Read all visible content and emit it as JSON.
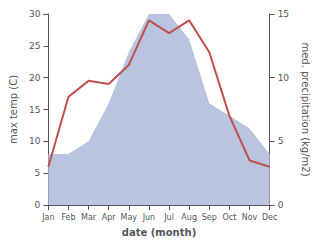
{
  "chart_data": {
    "type": "line",
    "xlabel": "date (month)",
    "ylabel": "max temp (C)",
    "y2label": "med. precipitation (kg/m2)",
    "categories": [
      "Jan",
      "Feb",
      "Mar",
      "Apr",
      "May",
      "Jun",
      "Jul",
      "Aug",
      "Sep",
      "Oct",
      "Nov",
      "Dec"
    ],
    "series": [
      {
        "type": "area",
        "axis": "y2",
        "color": "#b8c4e0",
        "values": [
          4,
          4,
          5,
          8,
          12,
          15,
          15,
          13,
          8,
          7,
          6,
          4
        ]
      },
      {
        "type": "line",
        "color": "#c0504d",
        "values": [
          6,
          17,
          19.5,
          19,
          22,
          29,
          27,
          29,
          24,
          14,
          7,
          6
        ]
      }
    ],
    "ylim": [
      0,
      30
    ],
    "yticks": [
      0,
      5,
      10,
      15,
      20,
      25,
      30
    ],
    "y2lim": [
      0,
      15
    ],
    "y2ticks": [
      0,
      5,
      10,
      15
    ],
    "grid": false
  }
}
